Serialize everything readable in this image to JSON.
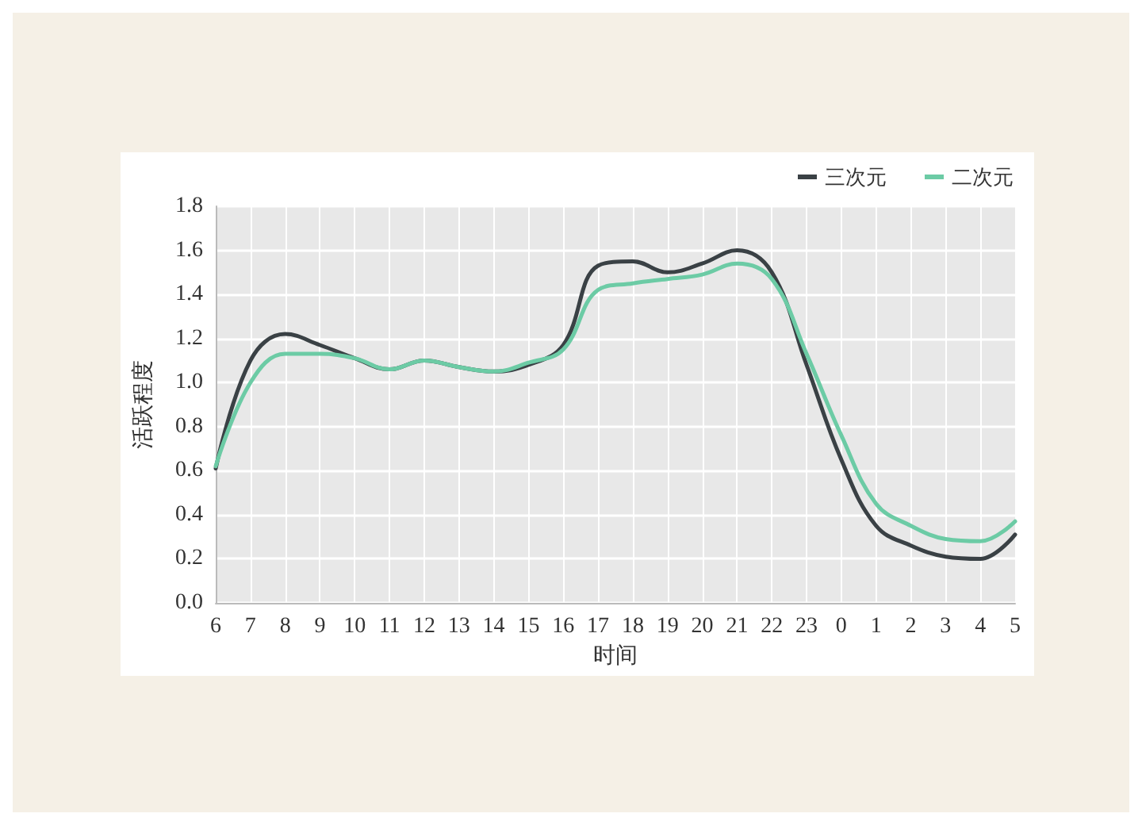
{
  "chart_data": {
    "type": "line",
    "xlabel": "时间",
    "ylabel": "活跃程度",
    "categories": [
      "6",
      "7",
      "8",
      "9",
      "10",
      "11",
      "12",
      "13",
      "14",
      "15",
      "16",
      "17",
      "18",
      "19",
      "20",
      "21",
      "22",
      "23",
      "0",
      "1",
      "2",
      "3",
      "4",
      "5"
    ],
    "series": [
      {
        "name": "三次元",
        "color": "#3a4145",
        "values": [
          0.61,
          1.1,
          1.22,
          1.17,
          1.11,
          1.06,
          1.1,
          1.07,
          1.05,
          1.08,
          1.17,
          1.53,
          1.55,
          1.5,
          1.54,
          1.6,
          1.5,
          1.08,
          0.65,
          0.35,
          0.26,
          0.21,
          0.2,
          0.31
        ]
      },
      {
        "name": "二次元",
        "color": "#6ccba5",
        "values": [
          0.62,
          1.0,
          1.13,
          1.13,
          1.11,
          1.06,
          1.1,
          1.07,
          1.05,
          1.09,
          1.15,
          1.42,
          1.45,
          1.47,
          1.49,
          1.54,
          1.47,
          1.13,
          0.76,
          0.45,
          0.35,
          0.29,
          0.28,
          0.37
        ]
      }
    ],
    "ylim": [
      0,
      1.8
    ],
    "yticks": [
      {
        "value": 0,
        "label": "0.0"
      },
      0.2,
      0.4,
      0.6,
      0.8,
      {
        "value": 1,
        "label": "1.0"
      },
      1.2,
      1.4,
      1.6,
      1.8
    ],
    "grid": true,
    "legend": "top right",
    "marker": "none",
    "line_style": "solid"
  }
}
